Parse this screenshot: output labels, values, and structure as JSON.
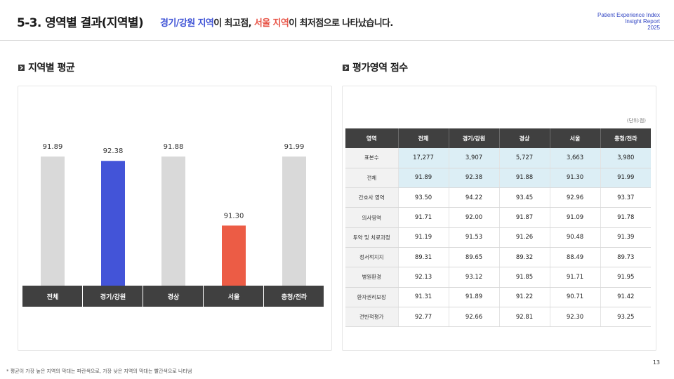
{
  "header": {
    "slide_title": "5-3. 영역별 결과(지역별)",
    "headline_part1": "경기/강원 지역",
    "headline_part2": "이 최고점, ",
    "headline_part3": "서울 지역",
    "headline_part4": "이 최저점으로 나타났습니다.",
    "report_line1": "Patient Experience Index",
    "report_line2": "Insight Report",
    "report_line3": "2025"
  },
  "left_section": {
    "title": "지역별 평균"
  },
  "right_section": {
    "title": "평가영역 점수",
    "unit": "(단위:점)"
  },
  "colors": {
    "highest": "#4354d8",
    "lowest": "#ec5c45",
    "other": "#d9d9d9",
    "axis_label_bg": "#404040"
  },
  "chart_data": {
    "type": "bar",
    "categories": [
      "전체",
      "경기/강원",
      "경상",
      "서울",
      "충청/전라"
    ],
    "values": [
      91.89,
      92.38,
      91.88,
      91.3,
      91.99
    ],
    "value_labels": [
      "91.89",
      "92.38",
      "91.88",
      "91.30",
      "91.99"
    ],
    "highlight": {
      "highest": "경기/강원",
      "lowest": "서울"
    },
    "grid": false
  },
  "table": {
    "columns": [
      "영역",
      "전체",
      "경기/강원",
      "경상",
      "서울",
      "충청/전라"
    ],
    "rows": [
      {
        "label": "표본수",
        "values": [
          "17,277",
          "3,907",
          "5,727",
          "3,663",
          "3,980"
        ],
        "highlight": true
      },
      {
        "label": "전체",
        "values": [
          "91.89",
          "92.38",
          "91.88",
          "91.30",
          "91.99"
        ],
        "highlight": true
      },
      {
        "label": "간호사 영역",
        "values": [
          "93.50",
          "94.22",
          "93.45",
          "92.96",
          "93.37"
        ],
        "highlight": false
      },
      {
        "label": "의사영역",
        "values": [
          "91.71",
          "92.00",
          "91.87",
          "91.09",
          "91.78"
        ],
        "highlight": false
      },
      {
        "label": "투약 및 치료과정",
        "values": [
          "91.19",
          "91.53",
          "91.26",
          "90.48",
          "91.39"
        ],
        "highlight": false
      },
      {
        "label": "정서적지지",
        "values": [
          "89.31",
          "89.65",
          "89.32",
          "88.49",
          "89.73"
        ],
        "highlight": false
      },
      {
        "label": "병원환경",
        "values": [
          "92.13",
          "93.12",
          "91.85",
          "91.71",
          "91.95"
        ],
        "highlight": false
      },
      {
        "label": "환자권리보장",
        "values": [
          "91.31",
          "91.89",
          "91.22",
          "90.71",
          "91.42"
        ],
        "highlight": false
      },
      {
        "label": "전반적평가",
        "values": [
          "92.77",
          "92.66",
          "92.81",
          "92.30",
          "93.25"
        ],
        "highlight": false
      }
    ]
  },
  "footnote": "* 평균이 가장 높은 지역의 막대는 파란색으로, 가장 낮은 지역의 막대는 빨간색으로 나타냄",
  "page_number": "13"
}
